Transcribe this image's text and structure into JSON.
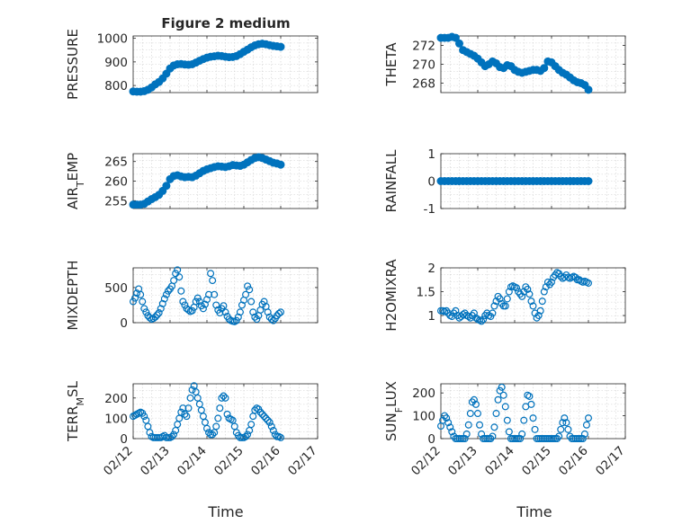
{
  "figure": {
    "title": "Figure 2 medium",
    "xlabel": "Time",
    "xtick_labels": [
      "02/12",
      "02/13",
      "02/14",
      "02/15",
      "02/16",
      "02/17"
    ],
    "marker_color": "#0072BD"
  },
  "chart_data": [
    {
      "type": "scatter",
      "title": "Figure 2 medium",
      "ylabel": "PRESSURE",
      "ylim": [
        770,
        1010
      ],
      "yticks": [
        800,
        900,
        1000
      ],
      "xlim": [
        0,
        5
      ],
      "x_unit": "days after 02/12",
      "grid": true,
      "marker": "filled",
      "x": [
        0.0,
        0.1,
        0.2,
        0.3,
        0.4,
        0.5,
        0.6,
        0.7,
        0.8,
        0.9,
        1.0,
        1.1,
        1.2,
        1.3,
        1.4,
        1.5,
        1.6,
        1.7,
        1.8,
        1.9,
        2.0,
        2.1,
        2.2,
        2.3,
        2.4,
        2.5,
        2.6,
        2.7,
        2.8,
        2.9,
        3.0,
        3.1,
        3.2,
        3.3,
        3.4,
        3.5,
        3.6,
        3.7,
        3.8,
        3.9,
        4.0
      ],
      "y": [
        775,
        774,
        774,
        776,
        782,
        792,
        805,
        815,
        830,
        850,
        872,
        885,
        890,
        891,
        889,
        888,
        890,
        897,
        905,
        912,
        918,
        922,
        924,
        926,
        925,
        922,
        920,
        921,
        925,
        933,
        943,
        952,
        962,
        970,
        975,
        977,
        975,
        971,
        968,
        966,
        964
      ]
    },
    {
      "type": "scatter",
      "ylabel": "THETA",
      "ylim": [
        267,
        273
      ],
      "yticks": [
        268,
        270,
        272
      ],
      "xlim": [
        0,
        5
      ],
      "x_unit": "days after 02/12",
      "grid": true,
      "marker": "filled",
      "x": [
        0.0,
        0.1,
        0.2,
        0.3,
        0.4,
        0.5,
        0.6,
        0.7,
        0.8,
        0.9,
        1.0,
        1.1,
        1.2,
        1.3,
        1.4,
        1.5,
        1.6,
        1.7,
        1.8,
        1.9,
        2.0,
        2.1,
        2.2,
        2.3,
        2.4,
        2.5,
        2.6,
        2.7,
        2.8,
        2.9,
        3.0,
        3.1,
        3.2,
        3.3,
        3.4,
        3.5,
        3.6,
        3.7,
        3.8,
        3.9,
        4.0
      ],
      "y": [
        272.8,
        272.8,
        272.8,
        272.9,
        272.8,
        272.2,
        271.5,
        271.3,
        271.1,
        270.9,
        270.6,
        270.2,
        269.8,
        270.0,
        270.3,
        270.1,
        269.7,
        269.6,
        269.9,
        269.8,
        269.4,
        269.2,
        269.1,
        269.2,
        269.3,
        269.4,
        269.4,
        269.3,
        269.6,
        270.3,
        270.2,
        269.8,
        269.4,
        269.1,
        268.9,
        268.6,
        268.3,
        268.1,
        268.0,
        267.8,
        267.3
      ]
    },
    {
      "type": "scatter",
      "ylabel": "AIR_TEMP",
      "ylim": [
        253,
        267
      ],
      "yticks": [
        255,
        260,
        265
      ],
      "xlim": [
        0,
        5
      ],
      "x_unit": "days after 02/12",
      "grid": true,
      "marker": "filled",
      "x": [
        0.0,
        0.1,
        0.2,
        0.3,
        0.4,
        0.5,
        0.6,
        0.7,
        0.8,
        0.9,
        1.0,
        1.1,
        1.2,
        1.3,
        1.4,
        1.5,
        1.6,
        1.7,
        1.8,
        1.9,
        2.0,
        2.1,
        2.2,
        2.3,
        2.4,
        2.5,
        2.6,
        2.7,
        2.8,
        2.9,
        3.0,
        3.1,
        3.2,
        3.3,
        3.4,
        3.5,
        3.6,
        3.7,
        3.8,
        3.9,
        4.0
      ],
      "y": [
        254.0,
        254.0,
        254.0,
        254.2,
        254.8,
        255.4,
        255.9,
        256.5,
        257.5,
        258.8,
        260.5,
        261.3,
        261.5,
        261.2,
        261.0,
        261.1,
        261.0,
        261.4,
        262.0,
        262.6,
        263.0,
        263.3,
        263.6,
        263.8,
        263.7,
        263.6,
        263.8,
        264.1,
        264.0,
        263.9,
        264.2,
        264.8,
        265.4,
        265.9,
        266.1,
        265.9,
        265.5,
        265.1,
        264.7,
        264.5,
        264.2
      ]
    },
    {
      "type": "scatter",
      "ylabel": "RAINFALL",
      "ylim": [
        -1,
        1
      ],
      "yticks": [
        -1,
        0,
        1
      ],
      "xlim": [
        0,
        5
      ],
      "x_unit": "days after 02/12",
      "grid": true,
      "marker": "filled",
      "x": [
        0.0,
        0.1,
        0.2,
        0.3,
        0.4,
        0.5,
        0.6,
        0.7,
        0.8,
        0.9,
        1.0,
        1.1,
        1.2,
        1.3,
        1.4,
        1.5,
        1.6,
        1.7,
        1.8,
        1.9,
        2.0,
        2.1,
        2.2,
        2.3,
        2.4,
        2.5,
        2.6,
        2.7,
        2.8,
        2.9,
        3.0,
        3.1,
        3.2,
        3.3,
        3.4,
        3.5,
        3.6,
        3.7,
        3.8,
        3.9,
        4.0
      ],
      "y": [
        0,
        0,
        0,
        0,
        0,
        0,
        0,
        0,
        0,
        0,
        0,
        0,
        0,
        0,
        0,
        0,
        0,
        0,
        0,
        0,
        0,
        0,
        0,
        0,
        0,
        0,
        0,
        0,
        0,
        0,
        0,
        0,
        0,
        0,
        0,
        0,
        0,
        0,
        0,
        0,
        0
      ]
    },
    {
      "type": "scatter",
      "ylabel": "MIXDEPTH",
      "ylim": [
        0,
        780
      ],
      "yticks": [
        0,
        500
      ],
      "xlim": [
        0,
        5
      ],
      "x_unit": "days after 02/12",
      "grid": true,
      "marker": "open",
      "x": [
        0.0,
        0.05,
        0.1,
        0.15,
        0.2,
        0.25,
        0.3,
        0.35,
        0.4,
        0.45,
        0.5,
        0.55,
        0.6,
        0.65,
        0.7,
        0.75,
        0.8,
        0.85,
        0.9,
        0.95,
        1.0,
        1.05,
        1.1,
        1.15,
        1.2,
        1.25,
        1.3,
        1.35,
        1.4,
        1.45,
        1.5,
        1.55,
        1.6,
        1.65,
        1.7,
        1.75,
        1.8,
        1.85,
        1.9,
        1.95,
        2.0,
        2.05,
        2.1,
        2.15,
        2.2,
        2.25,
        2.3,
        2.35,
        2.4,
        2.45,
        2.5,
        2.55,
        2.6,
        2.65,
        2.7,
        2.75,
        2.8,
        2.85,
        2.9,
        2.95,
        3.0,
        3.05,
        3.1,
        3.15,
        3.2,
        3.25,
        3.3,
        3.35,
        3.4,
        3.45,
        3.5,
        3.55,
        3.6,
        3.65,
        3.7,
        3.75,
        3.8,
        3.85,
        3.9,
        3.95,
        4.0
      ],
      "y": [
        300,
        350,
        420,
        480,
        400,
        300,
        200,
        150,
        100,
        70,
        50,
        60,
        80,
        110,
        140,
        200,
        270,
        340,
        400,
        450,
        480,
        520,
        600,
        700,
        750,
        650,
        450,
        300,
        250,
        200,
        180,
        160,
        170,
        220,
        300,
        350,
        300,
        240,
        200,
        260,
        330,
        400,
        700,
        600,
        400,
        250,
        180,
        140,
        200,
        240,
        150,
        90,
        50,
        30,
        20,
        15,
        30,
        80,
        150,
        250,
        320,
        400,
        520,
        470,
        300,
        150,
        80,
        50,
        100,
        180,
        260,
        300,
        230,
        150,
        80,
        50,
        30,
        60,
        100,
        130,
        150
      ]
    },
    {
      "type": "scatter",
      "ylabel": "H2OMIXRA",
      "ylim": [
        0.85,
        2.0
      ],
      "yticks": [
        1,
        1.5,
        2
      ],
      "xlim": [
        0,
        5
      ],
      "x_unit": "days after 02/12",
      "grid": true,
      "marker": "open",
      "x": [
        0.0,
        0.05,
        0.1,
        0.15,
        0.2,
        0.25,
        0.3,
        0.35,
        0.4,
        0.45,
        0.5,
        0.55,
        0.6,
        0.65,
        0.7,
        0.75,
        0.8,
        0.85,
        0.9,
        0.95,
        1.0,
        1.05,
        1.1,
        1.15,
        1.2,
        1.25,
        1.3,
        1.35,
        1.4,
        1.45,
        1.5,
        1.55,
        1.6,
        1.65,
        1.7,
        1.75,
        1.8,
        1.85,
        1.9,
        1.95,
        2.0,
        2.05,
        2.1,
        2.15,
        2.2,
        2.25,
        2.3,
        2.35,
        2.4,
        2.45,
        2.5,
        2.55,
        2.6,
        2.65,
        2.7,
        2.75,
        2.8,
        2.85,
        2.9,
        2.95,
        3.0,
        3.05,
        3.1,
        3.15,
        3.2,
        3.25,
        3.3,
        3.35,
        3.4,
        3.45,
        3.5,
        3.55,
        3.6,
        3.65,
        3.7,
        3.75,
        3.8,
        3.85,
        3.9,
        3.95,
        4.0
      ],
      "y": [
        1.1,
        1.1,
        1.08,
        1.1,
        1.05,
        1.0,
        0.98,
        1.05,
        1.1,
        1.0,
        0.95,
        0.98,
        1.02,
        1.05,
        1.0,
        0.98,
        0.95,
        1.0,
        1.05,
        0.95,
        0.92,
        0.9,
        0.88,
        0.92,
        1.0,
        1.05,
        1.0,
        0.98,
        1.05,
        1.2,
        1.3,
        1.4,
        1.35,
        1.25,
        1.2,
        1.2,
        1.35,
        1.5,
        1.6,
        1.62,
        1.6,
        1.58,
        1.5,
        1.45,
        1.4,
        1.5,
        1.6,
        1.55,
        1.45,
        1.3,
        1.2,
        1.05,
        0.95,
        1.0,
        1.1,
        1.3,
        1.5,
        1.6,
        1.7,
        1.65,
        1.7,
        1.8,
        1.85,
        1.9,
        1.88,
        1.82,
        1.78,
        1.8,
        1.85,
        1.8,
        1.78,
        1.8,
        1.82,
        1.8,
        1.75,
        1.75,
        1.72,
        1.7,
        1.72,
        1.7,
        1.68
      ]
    },
    {
      "type": "scatter",
      "ylabel": "TERR_MSL",
      "ylim": [
        0,
        270
      ],
      "yticks": [
        0,
        100,
        200
      ],
      "xlim": [
        0,
        5
      ],
      "x_unit": "days after 02/12",
      "grid": true,
      "marker": "open",
      "x": [
        0.0,
        0.05,
        0.1,
        0.15,
        0.2,
        0.25,
        0.3,
        0.35,
        0.4,
        0.45,
        0.5,
        0.55,
        0.6,
        0.65,
        0.7,
        0.75,
        0.8,
        0.85,
        0.9,
        0.95,
        1.0,
        1.05,
        1.1,
        1.15,
        1.2,
        1.25,
        1.3,
        1.35,
        1.4,
        1.45,
        1.5,
        1.55,
        1.6,
        1.65,
        1.7,
        1.75,
        1.8,
        1.85,
        1.9,
        1.95,
        2.0,
        2.05,
        2.1,
        2.15,
        2.2,
        2.25,
        2.3,
        2.35,
        2.4,
        2.45,
        2.5,
        2.55,
        2.6,
        2.65,
        2.7,
        2.75,
        2.8,
        2.85,
        2.9,
        2.95,
        3.0,
        3.05,
        3.1,
        3.15,
        3.2,
        3.25,
        3.3,
        3.35,
        3.4,
        3.45,
        3.5,
        3.55,
        3.6,
        3.65,
        3.7,
        3.75,
        3.8,
        3.85,
        3.9,
        3.95,
        4.0
      ],
      "y": [
        110,
        115,
        120,
        125,
        130,
        125,
        110,
        90,
        60,
        30,
        10,
        5,
        5,
        5,
        5,
        5,
        10,
        15,
        5,
        5,
        5,
        10,
        20,
        40,
        70,
        100,
        130,
        150,
        120,
        110,
        150,
        200,
        240,
        260,
        230,
        200,
        170,
        140,
        110,
        80,
        50,
        30,
        20,
        20,
        30,
        60,
        100,
        150,
        200,
        210,
        200,
        120,
        100,
        95,
        90,
        60,
        30,
        15,
        5,
        5,
        5,
        10,
        20,
        40,
        70,
        110,
        140,
        150,
        145,
        130,
        120,
        110,
        100,
        90,
        80,
        60,
        40,
        20,
        10,
        10,
        5
      ]
    },
    {
      "type": "scatter",
      "ylabel": "SUN_FLUX",
      "ylim": [
        0,
        240
      ],
      "yticks": [
        0,
        100,
        200
      ],
      "xlim": [
        0,
        5
      ],
      "x_unit": "days after 02/12",
      "grid": true,
      "marker": "open",
      "x": [
        0.0,
        0.05,
        0.1,
        0.15,
        0.2,
        0.25,
        0.3,
        0.35,
        0.4,
        0.45,
        0.5,
        0.55,
        0.6,
        0.65,
        0.7,
        0.75,
        0.8,
        0.85,
        0.9,
        0.95,
        1.0,
        1.05,
        1.1,
        1.15,
        1.2,
        1.25,
        1.3,
        1.35,
        1.4,
        1.45,
        1.5,
        1.55,
        1.6,
        1.65,
        1.7,
        1.75,
        1.8,
        1.85,
        1.9,
        1.95,
        2.0,
        2.05,
        2.1,
        2.15,
        2.2,
        2.25,
        2.3,
        2.35,
        2.4,
        2.45,
        2.5,
        2.55,
        2.6,
        2.65,
        2.7,
        2.75,
        2.8,
        2.85,
        2.9,
        2.95,
        3.0,
        3.05,
        3.1,
        3.15,
        3.2,
        3.25,
        3.3,
        3.35,
        3.4,
        3.45,
        3.5,
        3.55,
        3.6,
        3.65,
        3.7,
        3.75,
        3.8,
        3.85,
        3.9,
        3.95,
        4.0
      ],
      "y": [
        55,
        80,
        100,
        90,
        70,
        50,
        30,
        10,
        0,
        0,
        0,
        0,
        0,
        0,
        20,
        60,
        110,
        160,
        170,
        150,
        110,
        60,
        20,
        0,
        0,
        0,
        0,
        0,
        10,
        50,
        110,
        170,
        210,
        225,
        190,
        140,
        80,
        30,
        0,
        0,
        0,
        0,
        0,
        0,
        20,
        80,
        140,
        190,
        185,
        150,
        90,
        40,
        0,
        0,
        0,
        0,
        0,
        0,
        0,
        0,
        0,
        0,
        0,
        0,
        10,
        40,
        70,
        90,
        70,
        40,
        10,
        0,
        0,
        0,
        0,
        0,
        0,
        0,
        20,
        60,
        90
      ]
    }
  ]
}
